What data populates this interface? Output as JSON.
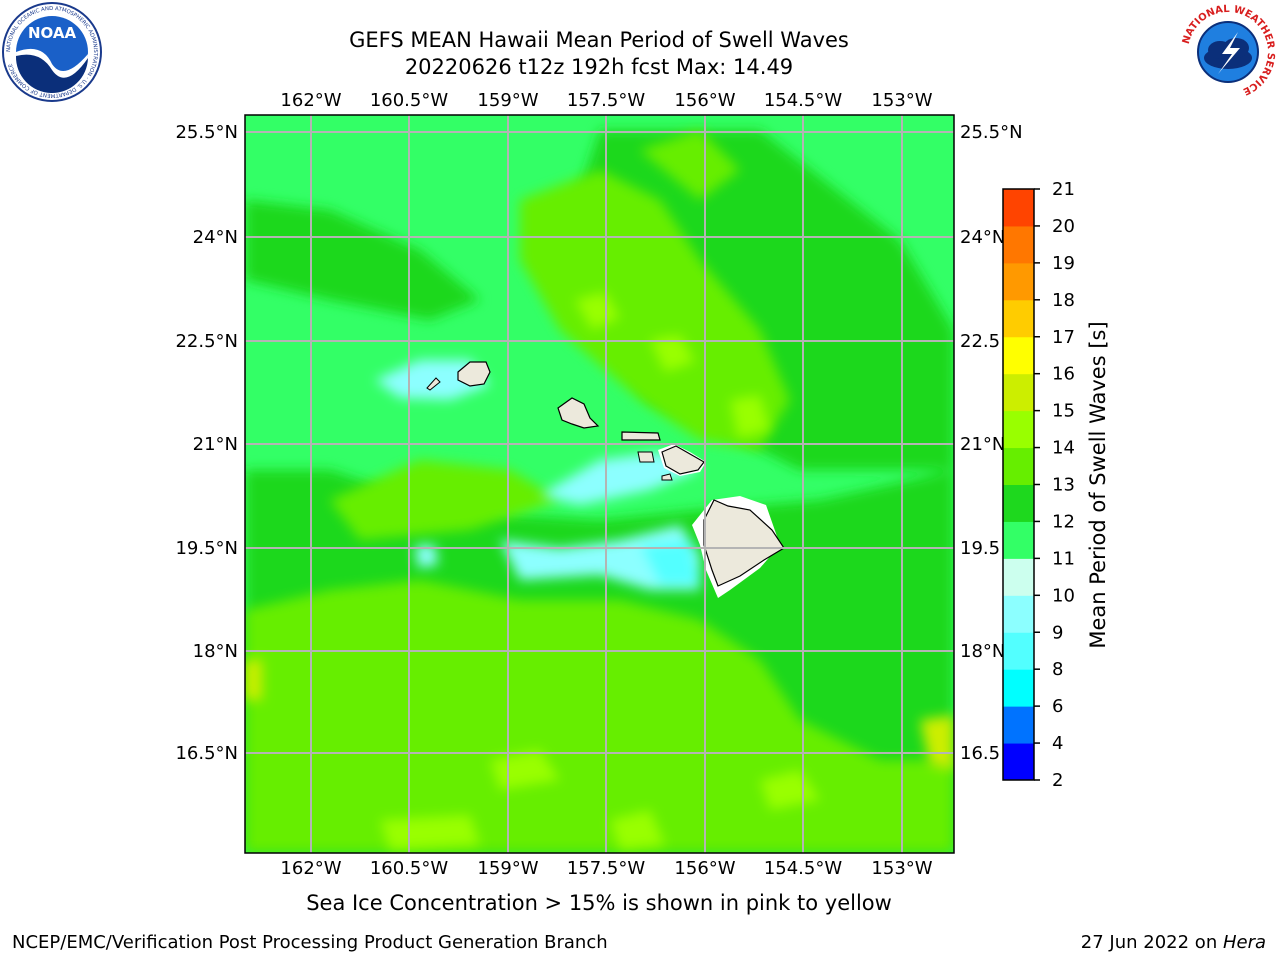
{
  "header": {
    "title_line1": "GEFS MEAN Hawaii Mean Period of Swell Waves",
    "title_line2": "20220626 t12z 192h fcst   Max: 14.49"
  },
  "logos": {
    "left": {
      "name": "noaa-logo",
      "text": "NOAA",
      "ring_text": "NATIONAL OCEANIC AND ATMOSPHERIC ADMINISTRATION · U.S. DEPARTMENT OF COMMERCE"
    },
    "right": {
      "name": "nws-logo",
      "ring_text": "NATIONAL WEATHER SERVICE"
    }
  },
  "map": {
    "lon_labels": [
      "162°W",
      "160.5°W",
      "159°W",
      "157.5°W",
      "156°W",
      "154.5°W",
      "153°W"
    ],
    "lat_labels": [
      "25.5°N",
      "24°N",
      "22.5°N",
      "21°N",
      "19.5°N",
      "18°N",
      "16.5°N"
    ],
    "lat_labels_right": [
      "25.5°N",
      "24°N",
      "22.5",
      "21°N",
      "19.5",
      "18°N",
      "16.5"
    ]
  },
  "colorbar": {
    "label": "Mean Period of Swell Waves [s]",
    "ticks": [
      "2",
      "4",
      "6",
      "8",
      "9",
      "10",
      "11",
      "12",
      "13",
      "14",
      "15",
      "16",
      "17",
      "18",
      "19",
      "20",
      "21"
    ],
    "colors": [
      "#0000ff",
      "#0073ff",
      "#00ffff",
      "#52ffff",
      "#8cffff",
      "#ccffee",
      "#33ff66",
      "#1ed81e",
      "#66ee00",
      "#99ff00",
      "#ccee00",
      "#ffff00",
      "#ffcc00",
      "#ff9900",
      "#ff7700",
      "#ff4400",
      "#ff0000"
    ]
  },
  "caption": "Sea Ice Concentration > 15% is shown in pink to yellow",
  "footer": {
    "left": "NCEP/EMC/Verification Post Processing Product Generation Branch",
    "right_prefix": "27 Jun 2022 on ",
    "right_machine": "Hera"
  }
}
